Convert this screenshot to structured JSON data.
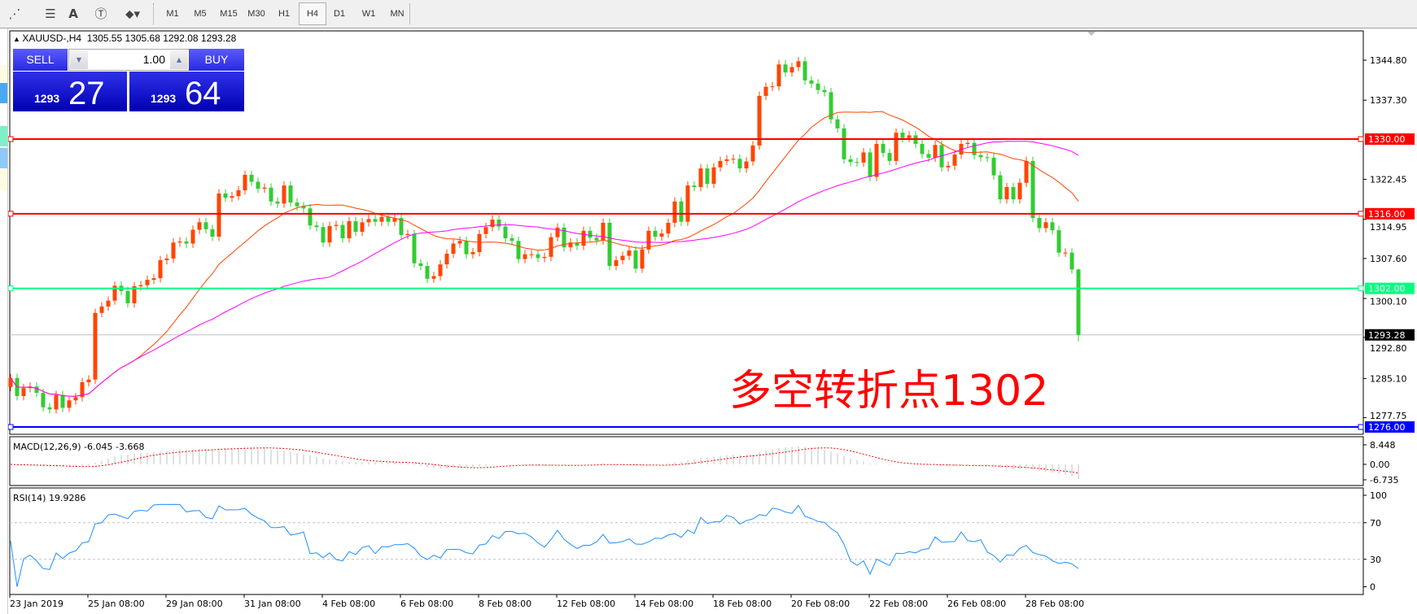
{
  "toolbar": {
    "icons": [
      "elliott-wave-icon",
      "fibonacci-icon",
      "text-icon",
      "text-label-icon",
      "arrows-icon"
    ],
    "timeframes": [
      "M1",
      "M5",
      "M15",
      "M30",
      "H1",
      "H4",
      "D1",
      "W1",
      "MN"
    ],
    "active_timeframe": "H4"
  },
  "chart_header": {
    "symbol": "XAUUSD-,H4",
    "ohlc": "1305.55 1305.68 1292.08 1293.28"
  },
  "trade_panel": {
    "sell_label": "SELL",
    "buy_label": "BUY",
    "lot": "1.00",
    "sell_price_prefix": "1293",
    "sell_price_big": "27",
    "buy_price_prefix": "1293",
    "buy_price_big": "64"
  },
  "annotation": "多空转折点1302",
  "colors": {
    "bull_candle": "#ff4500",
    "bear_candle": "#32cd32",
    "ma_fast": "#ff4500",
    "ma_slow": "#ff00ff",
    "level_red": "#ff0000",
    "level_green": "#00ff7f",
    "level_blue": "#0000ff",
    "bid_line": "#c0c0c0",
    "trade_button": "#2a2ae0"
  },
  "chart_data": {
    "type": "candlestick",
    "price_axis_labels": [
      "1344.80",
      "1337.30",
      "1330.00",
      "1322.45",
      "1316.00",
      "1307.60",
      "1302.00",
      "1300.10",
      "1293.28",
      "1285.10",
      "1277.75",
      "1276.00"
    ],
    "price_axis_ticks": [
      1344.8,
      1337.3,
      1322.45,
      1314.95,
      1307.6,
      1300.1,
      1292.8,
      1285.1,
      1277.75
    ],
    "ylim": [
      1272.5,
      1350.5
    ],
    "horizontal_levels": [
      {
        "price": 1330.0,
        "label": "1330.00",
        "color": "#ff0000"
      },
      {
        "price": 1316.0,
        "label": "1316.00",
        "color": "#ff0000"
      },
      {
        "price": 1302.0,
        "label": "1302.00",
        "color": "#00ff7f"
      },
      {
        "price": 1276.0,
        "label": "1276.00",
        "color": "#0000ff"
      }
    ],
    "bid": {
      "price": 1293.28,
      "label": "1293.28"
    },
    "time_labels": [
      "23 Jan 2019",
      "25 Jan 08:00",
      "29 Jan 08:00",
      "31 Jan 08:00",
      "4 Feb 08:00",
      "6 Feb 08:00",
      "8 Feb 08:00",
      "12 Feb 08:00",
      "14 Feb 08:00",
      "18 Feb 08:00",
      "20 Feb 08:00",
      "22 Feb 08:00",
      "26 Feb 08:00",
      "28 Feb 08:00"
    ],
    "bars_per_time_label": 12,
    "first_open": 1283.5,
    "close": [
      1285.2,
      1281.8,
      1283.3,
      1283.6,
      1282.4,
      1279.7,
      1279.3,
      1282.0,
      1279.6,
      1281.0,
      1281.6,
      1284.4,
      1284.9,
      1297.4,
      1298.6,
      1299.7,
      1302.5,
      1301.5,
      1299.2,
      1302.4,
      1302.6,
      1303.6,
      1303.9,
      1307.3,
      1307.6,
      1310.6,
      1310.8,
      1310.4,
      1313.0,
      1314.4,
      1313.1,
      1311.7,
      1319.8,
      1319.0,
      1319.3,
      1320.4,
      1323.3,
      1322.0,
      1320.7,
      1320.9,
      1318.3,
      1317.9,
      1321.3,
      1318.1,
      1317.4,
      1317.0,
      1313.8,
      1313.5,
      1310.6,
      1313.7,
      1313.9,
      1311.4,
      1314.6,
      1312.6,
      1314.4,
      1315.0,
      1314.5,
      1315.4,
      1314.5,
      1315.2,
      1312.0,
      1312.2,
      1306.7,
      1306.2,
      1303.8,
      1304.3,
      1306.5,
      1308.5,
      1310.4,
      1310.9,
      1308.4,
      1308.8,
      1312.2,
      1313.5,
      1314.9,
      1313.6,
      1311.4,
      1310.9,
      1307.5,
      1308.4,
      1308.4,
      1307.7,
      1307.9,
      1311.6,
      1313.4,
      1309.7,
      1310.6,
      1310.0,
      1312.8,
      1311.5,
      1311.0,
      1314.3,
      1306.2,
      1307.3,
      1308.1,
      1309.1,
      1305.7,
      1309.3,
      1312.8,
      1311.7,
      1312.3,
      1314.3,
      1318.3,
      1314.5,
      1321.3,
      1321.0,
      1324.5,
      1321.6,
      1324.7,
      1325.9,
      1326.2,
      1326.3,
      1324.5,
      1325.8,
      1328.8,
      1338.1,
      1339.8,
      1339.9,
      1344.0,
      1342.5,
      1343.5,
      1344.6,
      1341.0,
      1340.4,
      1339.2,
      1338.8,
      1333.7,
      1332.0,
      1326.2,
      1325.7,
      1325.6,
      1327.5,
      1322.9,
      1329.1,
      1327.4,
      1325.9,
      1331.2,
      1330.2,
      1330.7,
      1329.1,
      1327.2,
      1326.5,
      1328.9,
      1324.7,
      1325.0,
      1327.1,
      1329.1,
      1329.3,
      1327.0,
      1326.6,
      1326.5,
      1323.2,
      1318.7,
      1321.0,
      1318.7,
      1321.8,
      1325.9,
      1315.2,
      1313.3,
      1314.4,
      1312.9,
      1308.7,
      1308.7,
      1305.55,
      1293.28
    ],
    "last_bar": {
      "open": 1305.55,
      "high": 1305.68,
      "low": 1292.08,
      "close": 1293.28
    },
    "macd": {
      "label": "MACD(12,26,9) -6.045 -3.668",
      "axis_labels": [
        "8.448",
        "0.00",
        "-6.735"
      ],
      "range": [
        -6.735,
        8.448
      ]
    },
    "rsi": {
      "label": "RSI(14) 19.9286",
      "axis_labels": [
        "100",
        "70",
        "30",
        "0"
      ],
      "levels": [
        70,
        30
      ],
      "range": [
        0,
        100
      ]
    }
  }
}
